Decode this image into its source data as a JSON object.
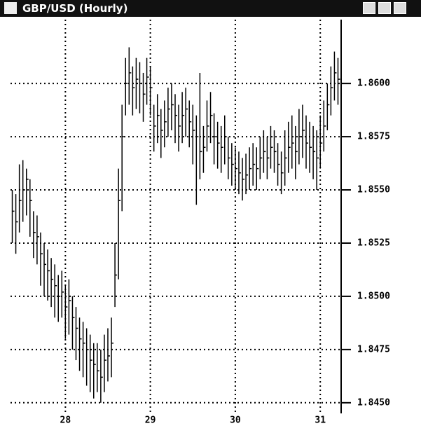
{
  "window": {
    "title": "GBP/USD (Hourly)"
  },
  "chart_data": {
    "type": "hlc",
    "color": "#000000",
    "grid": true,
    "categories": [
      null,
      null,
      null,
      null,
      null,
      null,
      null,
      null,
      null,
      null,
      null,
      null,
      null,
      null,
      null,
      "28",
      null,
      null,
      null,
      null,
      null,
      null,
      null,
      null,
      null,
      null,
      null,
      null,
      null,
      null,
      null,
      null,
      null,
      null,
      null,
      null,
      null,
      null,
      null,
      "29",
      null,
      null,
      null,
      null,
      null,
      null,
      null,
      null,
      null,
      null,
      null,
      null,
      null,
      null,
      null,
      null,
      null,
      null,
      null,
      null,
      null,
      null,
      null,
      "30",
      null,
      null,
      null,
      null,
      null,
      null,
      null,
      null,
      null,
      null,
      null,
      null,
      null,
      null,
      null,
      null,
      null,
      null,
      null,
      null,
      null,
      null,
      null,
      "31",
      null,
      null,
      null,
      null,
      null
    ],
    "high": [
      1.855,
      1.8548,
      1.8562,
      1.8564,
      1.856,
      1.8555,
      1.854,
      1.8538,
      1.853,
      1.8525,
      1.8522,
      1.8518,
      1.8515,
      1.851,
      1.8512,
      1.8505,
      1.8508,
      1.85,
      1.8495,
      1.849,
      1.8488,
      1.8485,
      1.8482,
      1.8478,
      1.8478,
      1.8475,
      1.8482,
      1.8485,
      1.849,
      1.8525,
      1.856,
      1.859,
      1.8612,
      1.8617,
      1.8608,
      1.8612,
      1.861,
      1.8605,
      1.8612,
      1.8608,
      1.859,
      1.8595,
      1.8588,
      1.8592,
      1.8598,
      1.86,
      1.8595,
      1.859,
      1.8596,
      1.8598,
      1.8592,
      1.859,
      1.8585,
      1.8605,
      1.858,
      1.8592,
      1.8596,
      1.8586,
      1.8582,
      1.858,
      1.8585,
      1.8575,
      1.8572,
      1.857,
      1.8568,
      1.8565,
      1.8567,
      1.857,
      1.8572,
      1.857,
      1.8575,
      1.8578,
      1.8575,
      1.858,
      1.8578,
      1.8572,
      1.8568,
      1.8578,
      1.8582,
      1.8585,
      1.858,
      1.8588,
      1.859,
      1.8585,
      1.8582,
      1.858,
      1.8578,
      1.8585,
      1.8592,
      1.86,
      1.8608,
      1.8615,
      1.8612
    ],
    "low": [
      1.8525,
      1.852,
      1.853,
      1.8535,
      1.8538,
      1.8528,
      1.8518,
      1.8515,
      1.8505,
      1.85,
      1.8498,
      1.8495,
      1.849,
      1.8488,
      1.849,
      1.848,
      1.8482,
      1.8475,
      1.847,
      1.8465,
      1.8462,
      1.8458,
      1.8455,
      1.8452,
      1.8455,
      1.845,
      1.8455,
      1.846,
      1.8462,
      1.8495,
      1.8508,
      1.854,
      1.8585,
      1.859,
      1.8585,
      1.8588,
      1.8586,
      1.8582,
      1.859,
      1.8585,
      1.8568,
      1.8572,
      1.8565,
      1.857,
      1.8575,
      1.8578,
      1.8572,
      1.8568,
      1.8572,
      1.8575,
      1.857,
      1.8562,
      1.8543,
      1.8555,
      1.8558,
      1.8568,
      1.8572,
      1.8562,
      1.856,
      1.8558,
      1.8562,
      1.8555,
      1.8552,
      1.855,
      1.8548,
      1.8545,
      1.8548,
      1.855,
      1.8552,
      1.855,
      1.8555,
      1.8558,
      1.8555,
      1.856,
      1.8558,
      1.8552,
      1.8548,
      1.8552,
      1.8558,
      1.856,
      1.8555,
      1.8562,
      1.8565,
      1.856,
      1.8558,
      1.8555,
      1.855,
      1.856,
      1.8568,
      1.8578,
      1.8585,
      1.8592,
      1.859
    ],
    "close": [
      1.854,
      1.8535,
      1.8545,
      1.855,
      1.8555,
      1.8545,
      1.853,
      1.8528,
      1.852,
      1.8515,
      1.8512,
      1.8508,
      1.8505,
      1.85,
      1.8502,
      1.8495,
      1.8498,
      1.849,
      1.8485,
      1.848,
      1.8478,
      1.8475,
      1.847,
      1.8468,
      1.8465,
      1.8462,
      1.847,
      1.8472,
      1.8478,
      1.851,
      1.8545,
      1.8575,
      1.86,
      1.8605,
      1.8598,
      1.8602,
      1.86,
      1.8595,
      1.8603,
      1.8598,
      1.858,
      1.8585,
      1.8578,
      1.8582,
      1.8588,
      1.859,
      1.8585,
      1.858,
      1.8585,
      1.8588,
      1.8582,
      1.8578,
      1.8575,
      1.8568,
      1.857,
      1.858,
      1.8585,
      1.8575,
      1.8572,
      1.857,
      1.8575,
      1.8565,
      1.8562,
      1.856,
      1.8558,
      1.8555,
      1.8557,
      1.856,
      1.8562,
      1.856,
      1.8565,
      1.8568,
      1.8565,
      1.857,
      1.8568,
      1.8562,
      1.8558,
      1.8565,
      1.857,
      1.8572,
      1.8568,
      1.8575,
      1.8578,
      1.8572,
      1.857,
      1.8568,
      1.8565,
      1.8572,
      1.858,
      1.859,
      1.8598,
      1.8605,
      1.8602
    ],
    "ylim": [
      1.8445,
      1.863
    ],
    "yticks": [
      {
        "value": 1.845,
        "label": "1.8450"
      },
      {
        "value": 1.8475,
        "label": "1.8475"
      },
      {
        "value": 1.85,
        "label": "1.8500"
      },
      {
        "value": 1.8525,
        "label": "1.8525"
      },
      {
        "value": 1.855,
        "label": "1.8550"
      },
      {
        "value": 1.8575,
        "label": "1.8575"
      },
      {
        "value": 1.86,
        "label": "1.8600"
      }
    ]
  }
}
